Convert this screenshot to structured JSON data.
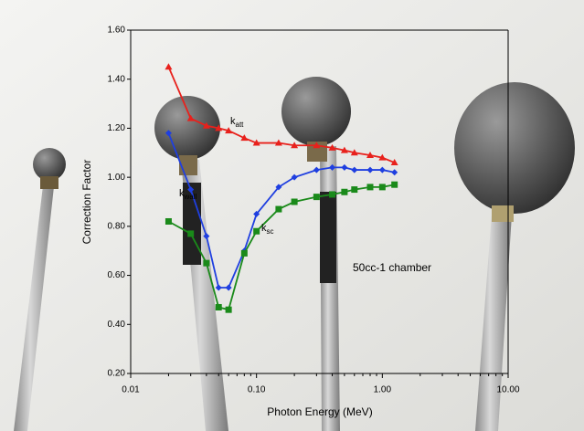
{
  "chart_data": {
    "type": "line",
    "x_label": "Photon Energy (MeV)",
    "y_label": "Correction Factor",
    "annotation": "50cc-1 chamber",
    "x_scale": "log",
    "x": [
      0.02,
      0.03,
      0.04,
      0.05,
      0.06,
      0.08,
      0.1,
      0.15,
      0.2,
      0.3,
      0.4,
      0.5,
      0.6,
      0.8,
      1.0,
      1.25
    ],
    "series": [
      {
        "name": "katt",
        "color": "#e8211c",
        "marker": "triangle",
        "values": [
          1.45,
          1.24,
          1.21,
          1.2,
          1.19,
          1.16,
          1.14,
          1.14,
          1.13,
          1.13,
          1.12,
          1.11,
          1.1,
          1.09,
          1.08,
          1.06
        ]
      },
      {
        "name": "kwall",
        "color": "#1f3fe0",
        "marker": "diamond",
        "values": [
          1.18,
          0.95,
          0.76,
          0.55,
          0.55,
          0.7,
          0.85,
          0.96,
          1.0,
          1.03,
          1.04,
          1.04,
          1.03,
          1.03,
          1.03,
          1.02
        ]
      },
      {
        "name": "ksc",
        "color": "#1a8a1a",
        "marker": "square",
        "values": [
          0.82,
          0.77,
          0.65,
          0.47,
          0.46,
          0.69,
          0.78,
          0.87,
          0.9,
          0.92,
          0.93,
          0.94,
          0.95,
          0.96,
          0.96,
          0.97
        ]
      }
    ],
    "xlim": [
      0.01,
      10
    ],
    "xticks": [
      {
        "value": 0.01,
        "label": "0.01"
      },
      {
        "value": 0.1,
        "label": "0.10"
      },
      {
        "value": 1,
        "label": "1.00"
      },
      {
        "value": 10,
        "label": "10.00"
      }
    ],
    "ylim": [
      0.2,
      1.6
    ],
    "yticks": [
      {
        "value": 0.2,
        "label": "0.20"
      },
      {
        "value": 0.4,
        "label": "0.40"
      },
      {
        "value": 0.6,
        "label": "0.60"
      },
      {
        "value": 0.8,
        "label": "0.80"
      },
      {
        "value": 1.0,
        "label": "1.00"
      },
      {
        "value": 1.2,
        "label": "1.20"
      },
      {
        "value": 1.4,
        "label": "1.40"
      },
      {
        "value": 1.6,
        "label": "1.60"
      }
    ]
  }
}
